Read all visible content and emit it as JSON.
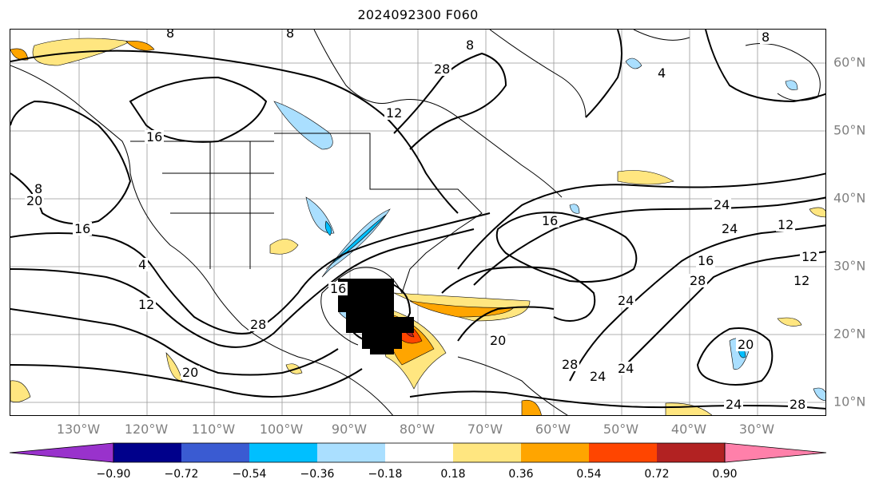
{
  "title": "2024092300 F060",
  "map": {
    "longitude_labels": [
      "130°W",
      "120°W",
      "110°W",
      "100°W",
      "90°W",
      "80°W",
      "70°W",
      "60°W",
      "50°W",
      "40°W",
      "30°W"
    ],
    "latitude_labels": [
      "60°N",
      "50°N",
      "40°N",
      "30°N",
      "20°N",
      "10°N"
    ],
    "contour_labels": [
      "8",
      "8",
      "8",
      "8",
      "16",
      "16",
      "16",
      "12",
      "12",
      "12",
      "12",
      "12",
      "24",
      "24",
      "24",
      "24",
      "24",
      "24",
      "20",
      "20",
      "20",
      "20",
      "28",
      "28",
      "28",
      "28",
      "28",
      "8",
      "4",
      "4",
      "16",
      "16"
    ],
    "colors": {
      "contour": "#000000",
      "grid": "#999999",
      "coastline": "#000000"
    }
  },
  "colorbar": {
    "tick_labels": [
      "−0.90",
      "−0.72",
      "−0.54",
      "−0.36",
      "−0.18",
      "0.18",
      "0.36",
      "0.54",
      "0.72",
      "0.90"
    ],
    "colors": [
      "#9932cc",
      "#00008b",
      "#3a5bd2",
      "#00bfff",
      "#aadfff",
      "#ffffff",
      "#ffe680",
      "#ffa500",
      "#ff4500",
      "#b22222",
      "#ff80aa"
    ]
  }
}
